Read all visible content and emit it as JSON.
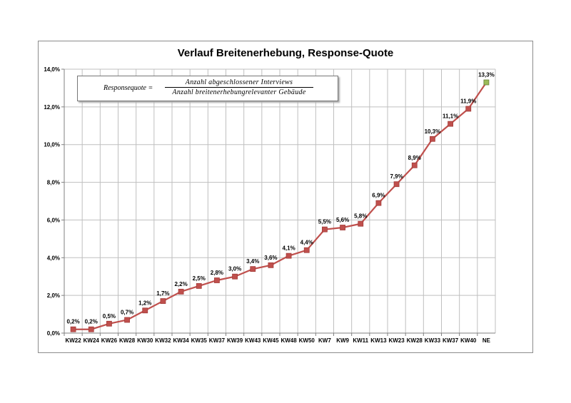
{
  "chart_data": {
    "type": "line",
    "title": "Verlauf Breitenerhebung, Response-Quote",
    "categories": [
      "KW22",
      "KW24",
      "KW26",
      "KW28",
      "KW30",
      "KW32",
      "KW34",
      "KW35",
      "KW37",
      "KW39",
      "KW43",
      "KW45",
      "KW48",
      "KW50",
      "KW7",
      "KW9",
      "KW11",
      "KW13",
      "KW23",
      "KW28",
      "KW33",
      "KW37",
      "KW40",
      "NE"
    ],
    "series": [
      {
        "values": [
          0.2,
          0.2,
          0.5,
          0.7,
          1.2,
          1.7,
          2.2,
          2.5,
          2.8,
          3.0,
          3.4,
          3.6,
          4.1,
          4.4,
          5.5,
          5.6,
          5.8,
          6.9,
          7.9,
          8.9,
          10.3,
          11.1,
          11.9,
          13.3
        ]
      }
    ],
    "data_labels": [
      "0,2%",
      "0,2%",
      "0,5%",
      "0,7%",
      "1,2%",
      "1,7%",
      "2,2%",
      "2,5%",
      "2,8%",
      "3,0%",
      "3,4%",
      "3,6%",
      "4,1%",
      "4,4%",
      "5,5%",
      "5,6%",
      "5,8%",
      "6,9%",
      "7,9%",
      "8,9%",
      "10,3%",
      "11,1%",
      "11,9%",
      "13,3%"
    ],
    "ylim": [
      0,
      14
    ],
    "ytick_values": [
      0,
      2,
      4,
      6,
      8,
      10,
      12,
      14
    ],
    "ytick_labels": [
      "0,0%",
      "2,0%",
      "4,0%",
      "6,0%",
      "8,0%",
      "10,0%",
      "12,0%",
      "14,0%"
    ],
    "grid": true,
    "line_color": "#c0504d",
    "marker_color": "#c0504d",
    "last_marker_color": "#9bbb59",
    "annotation": {
      "lhs": "Responsequote =",
      "numerator": "Anzahl abgeschlossener Interviews",
      "denominator": "Anzahl breitenerhebungrelevanter Gebäude"
    }
  }
}
